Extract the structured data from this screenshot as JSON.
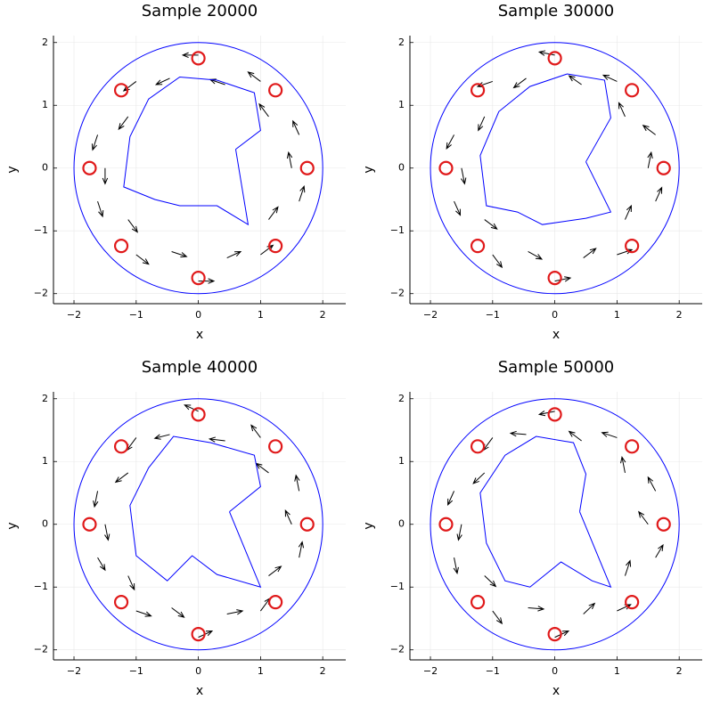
{
  "chart_data": [
    {
      "type": "quiver",
      "title": "Sample 20000",
      "xlabel": "x",
      "ylabel": "y",
      "xlim": [
        -2.33,
        2.37
      ],
      "ylim": [
        -2.16,
        2.11
      ],
      "xticks": [
        {
          "value": -2,
          "label": "−2"
        },
        {
          "value": -1,
          "label": "−1"
        },
        0,
        1,
        2
      ],
      "yticks": [
        {
          "value": -2,
          "label": "−2"
        },
        {
          "value": -1,
          "label": "−1"
        },
        0,
        1,
        2
      ],
      "grid": true,
      "color": "#000000",
      "boundary_color": "#0000ff",
      "point_color": "#e0191a",
      "boundary_radius": 2,
      "inner_boundary": {
        "x": [
          0.6,
          1.0,
          0.9,
          0.3,
          -0.3,
          -0.8,
          -1.1,
          -1.2,
          -0.7,
          -0.3,
          0.3,
          0.8,
          0.6
        ],
        "y": [
          0.3,
          0.6,
          1.2,
          1.4,
          1.45,
          1.1,
          0.5,
          -0.3,
          -0.5,
          -0.6,
          -0.6,
          -0.9,
          0.3
        ]
      },
      "points": {
        "x": [
          1.75,
          1.24,
          0,
          -1.24,
          -1.75,
          -1.24,
          0,
          1.24
        ],
        "y": [
          0,
          1.24,
          1.75,
          1.24,
          0,
          -1.24,
          -1.75,
          -1.24
        ]
      },
      "arrows": {
        "x": [
          1.5,
          1.62,
          1.13,
          1.0,
          0.43,
          0,
          -0.46,
          -1.0,
          -1.13,
          -1.62,
          -1.5,
          -1.62,
          -1.13,
          -1.0,
          -0.43,
          0,
          0.46,
          1.0,
          1.13,
          1.62
        ],
        "y": [
          0,
          0.53,
          0.82,
          1.38,
          1.33,
          1.8,
          1.43,
          1.38,
          0.82,
          0.53,
          0,
          -0.53,
          -0.82,
          -1.38,
          -1.33,
          -1.8,
          -1.43,
          -1.38,
          -0.82,
          -0.53
        ],
        "u": [
          -0.05,
          -0.1,
          -0.15,
          -0.2,
          -0.24,
          -0.25,
          -0.22,
          -0.2,
          -0.15,
          -0.08,
          0,
          0.08,
          0.15,
          0.2,
          0.24,
          0.25,
          0.22,
          0.2,
          0.15,
          0.08
        ],
        "v": [
          0.25,
          0.22,
          0.2,
          0.15,
          0.08,
          0,
          -0.1,
          -0.15,
          -0.2,
          -0.24,
          -0.25,
          -0.24,
          -0.2,
          -0.15,
          -0.08,
          0,
          0.1,
          0.15,
          0.2,
          0.24
        ]
      }
    },
    {
      "type": "quiver",
      "title": "Sample 30000",
      "xlabel": "x",
      "ylabel": "y",
      "xlim": [
        -2.33,
        2.37
      ],
      "ylim": [
        -2.16,
        2.11
      ],
      "xticks": [
        {
          "value": -2,
          "label": "−2"
        },
        {
          "value": -1,
          "label": "−1"
        },
        0,
        1,
        2
      ],
      "yticks": [
        {
          "value": -2,
          "label": "−2"
        },
        {
          "value": -1,
          "label": "−1"
        },
        0,
        1,
        2
      ],
      "grid": true,
      "color": "#000000",
      "boundary_color": "#0000ff",
      "point_color": "#e0191a",
      "boundary_radius": 2,
      "inner_boundary": {
        "x": [
          0.5,
          0.9,
          0.8,
          0.2,
          -0.4,
          -0.9,
          -1.2,
          -1.1,
          -0.6,
          -0.2,
          0.5,
          0.9,
          0.5
        ],
        "y": [
          0.1,
          0.8,
          1.4,
          1.5,
          1.3,
          0.9,
          0.2,
          -0.6,
          -0.7,
          -0.9,
          -0.8,
          -0.7,
          0.1
        ]
      },
      "points": {
        "x": [
          1.75,
          1.24,
          0,
          -1.24,
          -1.75,
          -1.24,
          0,
          1.24
        ],
        "y": [
          0,
          1.24,
          1.75,
          1.24,
          0,
          -1.24,
          -1.75,
          -1.24
        ]
      },
      "arrows": {
        "x": [
          1.5,
          1.62,
          1.13,
          1.0,
          0.43,
          0,
          -0.46,
          -1.0,
          -1.13,
          -1.62,
          -1.5,
          -1.62,
          -1.13,
          -1.0,
          -0.43,
          0,
          0.46,
          1.0,
          1.13,
          1.62
        ],
        "y": [
          0,
          0.53,
          0.82,
          1.38,
          1.33,
          1.8,
          1.43,
          1.38,
          0.82,
          0.53,
          0,
          -0.53,
          -0.82,
          -1.38,
          -1.33,
          -1.8,
          -1.43,
          -1.38,
          -0.82,
          -0.53
        ],
        "u": [
          0.05,
          -0.2,
          -0.1,
          -0.22,
          -0.2,
          -0.25,
          -0.2,
          -0.24,
          -0.1,
          -0.12,
          0.05,
          0.1,
          0.2,
          0.15,
          0.22,
          0.25,
          0.2,
          0.24,
          0.1,
          0.1
        ],
        "v": [
          0.25,
          0.15,
          0.22,
          0.1,
          0.14,
          0.05,
          -0.15,
          -0.08,
          -0.22,
          -0.22,
          -0.25,
          -0.22,
          -0.15,
          -0.2,
          -0.12,
          0.05,
          0.15,
          0.08,
          0.22,
          0.22
        ]
      }
    },
    {
      "type": "quiver",
      "title": "Sample 40000",
      "xlabel": "x",
      "ylabel": "y",
      "xlim": [
        -2.33,
        2.37
      ],
      "ylim": [
        -2.16,
        2.11
      ],
      "xticks": [
        {
          "value": -2,
          "label": "−2"
        },
        {
          "value": -1,
          "label": "−1"
        },
        0,
        1,
        2
      ],
      "yticks": [
        {
          "value": -2,
          "label": "−2"
        },
        {
          "value": -1,
          "label": "−1"
        },
        0,
        1,
        2
      ],
      "grid": true,
      "color": "#000000",
      "boundary_color": "#0000ff",
      "point_color": "#e0191a",
      "boundary_radius": 2,
      "inner_boundary": {
        "x": [
          0.5,
          1.0,
          0.9,
          0.2,
          -0.4,
          -0.8,
          -1.1,
          -1.0,
          -0.5,
          -0.1,
          0.3,
          1.0,
          0.5
        ],
        "y": [
          0.2,
          0.6,
          1.1,
          1.3,
          1.4,
          0.9,
          0.3,
          -0.5,
          -0.9,
          -0.5,
          -0.8,
          -1.0,
          0.2
        ]
      },
      "points": {
        "x": [
          1.75,
          1.24,
          0,
          -1.24,
          -1.75,
          -1.24,
          0,
          1.24
        ],
        "y": [
          0,
          1.24,
          1.75,
          1.24,
          0,
          -1.24,
          -1.75,
          -1.24
        ]
      },
      "arrows": {
        "x": [
          1.5,
          1.62,
          1.13,
          1.0,
          0.43,
          0,
          -0.46,
          -1.0,
          -1.13,
          -1.62,
          -1.5,
          -1.62,
          -1.13,
          -1.0,
          -0.43,
          0,
          0.46,
          1.0,
          1.13,
          1.62
        ],
        "y": [
          0,
          0.53,
          0.82,
          1.38,
          1.33,
          1.8,
          1.43,
          1.38,
          0.82,
          0.53,
          0,
          -0.53,
          -0.82,
          -1.38,
          -1.33,
          -1.8,
          -1.43,
          -1.38,
          -0.82,
          -0.53
        ],
        "u": [
          -0.1,
          -0.05,
          -0.2,
          -0.15,
          -0.25,
          -0.22,
          -0.24,
          -0.15,
          -0.2,
          -0.05,
          0.05,
          0.12,
          0.1,
          0.24,
          0.2,
          0.22,
          0.25,
          0.15,
          0.2,
          0.05
        ],
        "v": [
          0.22,
          0.25,
          0.15,
          0.2,
          0.03,
          0.1,
          -0.06,
          -0.2,
          -0.15,
          -0.25,
          -0.25,
          -0.2,
          -0.22,
          -0.08,
          -0.15,
          0.1,
          0.05,
          0.2,
          0.15,
          0.25
        ]
      }
    },
    {
      "type": "quiver",
      "title": "Sample 50000",
      "xlabel": "x",
      "ylabel": "y",
      "xlim": [
        -2.33,
        2.37
      ],
      "ylim": [
        -2.16,
        2.11
      ],
      "xticks": [
        {
          "value": -2,
          "label": "−2"
        },
        {
          "value": -1,
          "label": "−1"
        },
        0,
        1,
        2
      ],
      "yticks": [
        {
          "value": -2,
          "label": "−2"
        },
        {
          "value": -1,
          "label": "−1"
        },
        0,
        1,
        2
      ],
      "grid": true,
      "color": "#000000",
      "boundary_color": "#0000ff",
      "point_color": "#e0191a",
      "boundary_radius": 2,
      "inner_boundary": {
        "x": [
          0.4,
          0.5,
          0.3,
          -0.3,
          -0.8,
          -1.2,
          -1.1,
          -0.8,
          -0.4,
          0.1,
          0.6,
          0.9,
          0.4
        ],
        "y": [
          0.2,
          0.8,
          1.3,
          1.4,
          1.1,
          0.5,
          -0.3,
          -0.9,
          -1.0,
          -0.6,
          -0.9,
          -1.0,
          0.2
        ]
      },
      "points": {
        "x": [
          1.75,
          1.24,
          0,
          -1.24,
          -1.75,
          -1.24,
          0,
          1.24
        ],
        "y": [
          0,
          1.24,
          1.75,
          1.24,
          0,
          -1.24,
          -1.75,
          -1.24
        ]
      },
      "arrows": {
        "x": [
          1.5,
          1.62,
          1.13,
          1.0,
          0.43,
          0,
          -0.46,
          -1.0,
          -1.13,
          -1.62,
          -1.5,
          -1.62,
          -1.13,
          -1.0,
          -0.43,
          0,
          0.46,
          1.0,
          1.13,
          1.62
        ],
        "y": [
          0,
          0.53,
          0.82,
          1.38,
          1.33,
          1.8,
          1.43,
          1.38,
          0.82,
          0.53,
          0,
          -0.53,
          -0.82,
          -1.38,
          -1.33,
          -1.8,
          -1.43,
          -1.38,
          -0.82,
          -0.53
        ],
        "u": [
          -0.15,
          -0.12,
          -0.05,
          -0.24,
          -0.2,
          -0.25,
          -0.25,
          -0.15,
          -0.18,
          -0.1,
          -0.05,
          0.05,
          0.18,
          0.15,
          0.25,
          0.22,
          0.18,
          0.22,
          0.08,
          0.12
        ],
        "v": [
          0.2,
          0.22,
          0.25,
          0.08,
          0.15,
          -0.05,
          0.02,
          -0.2,
          -0.17,
          -0.22,
          -0.25,
          -0.25,
          -0.17,
          -0.2,
          -0.02,
          0.1,
          0.17,
          0.1,
          0.24,
          0.2
        ]
      }
    }
  ]
}
